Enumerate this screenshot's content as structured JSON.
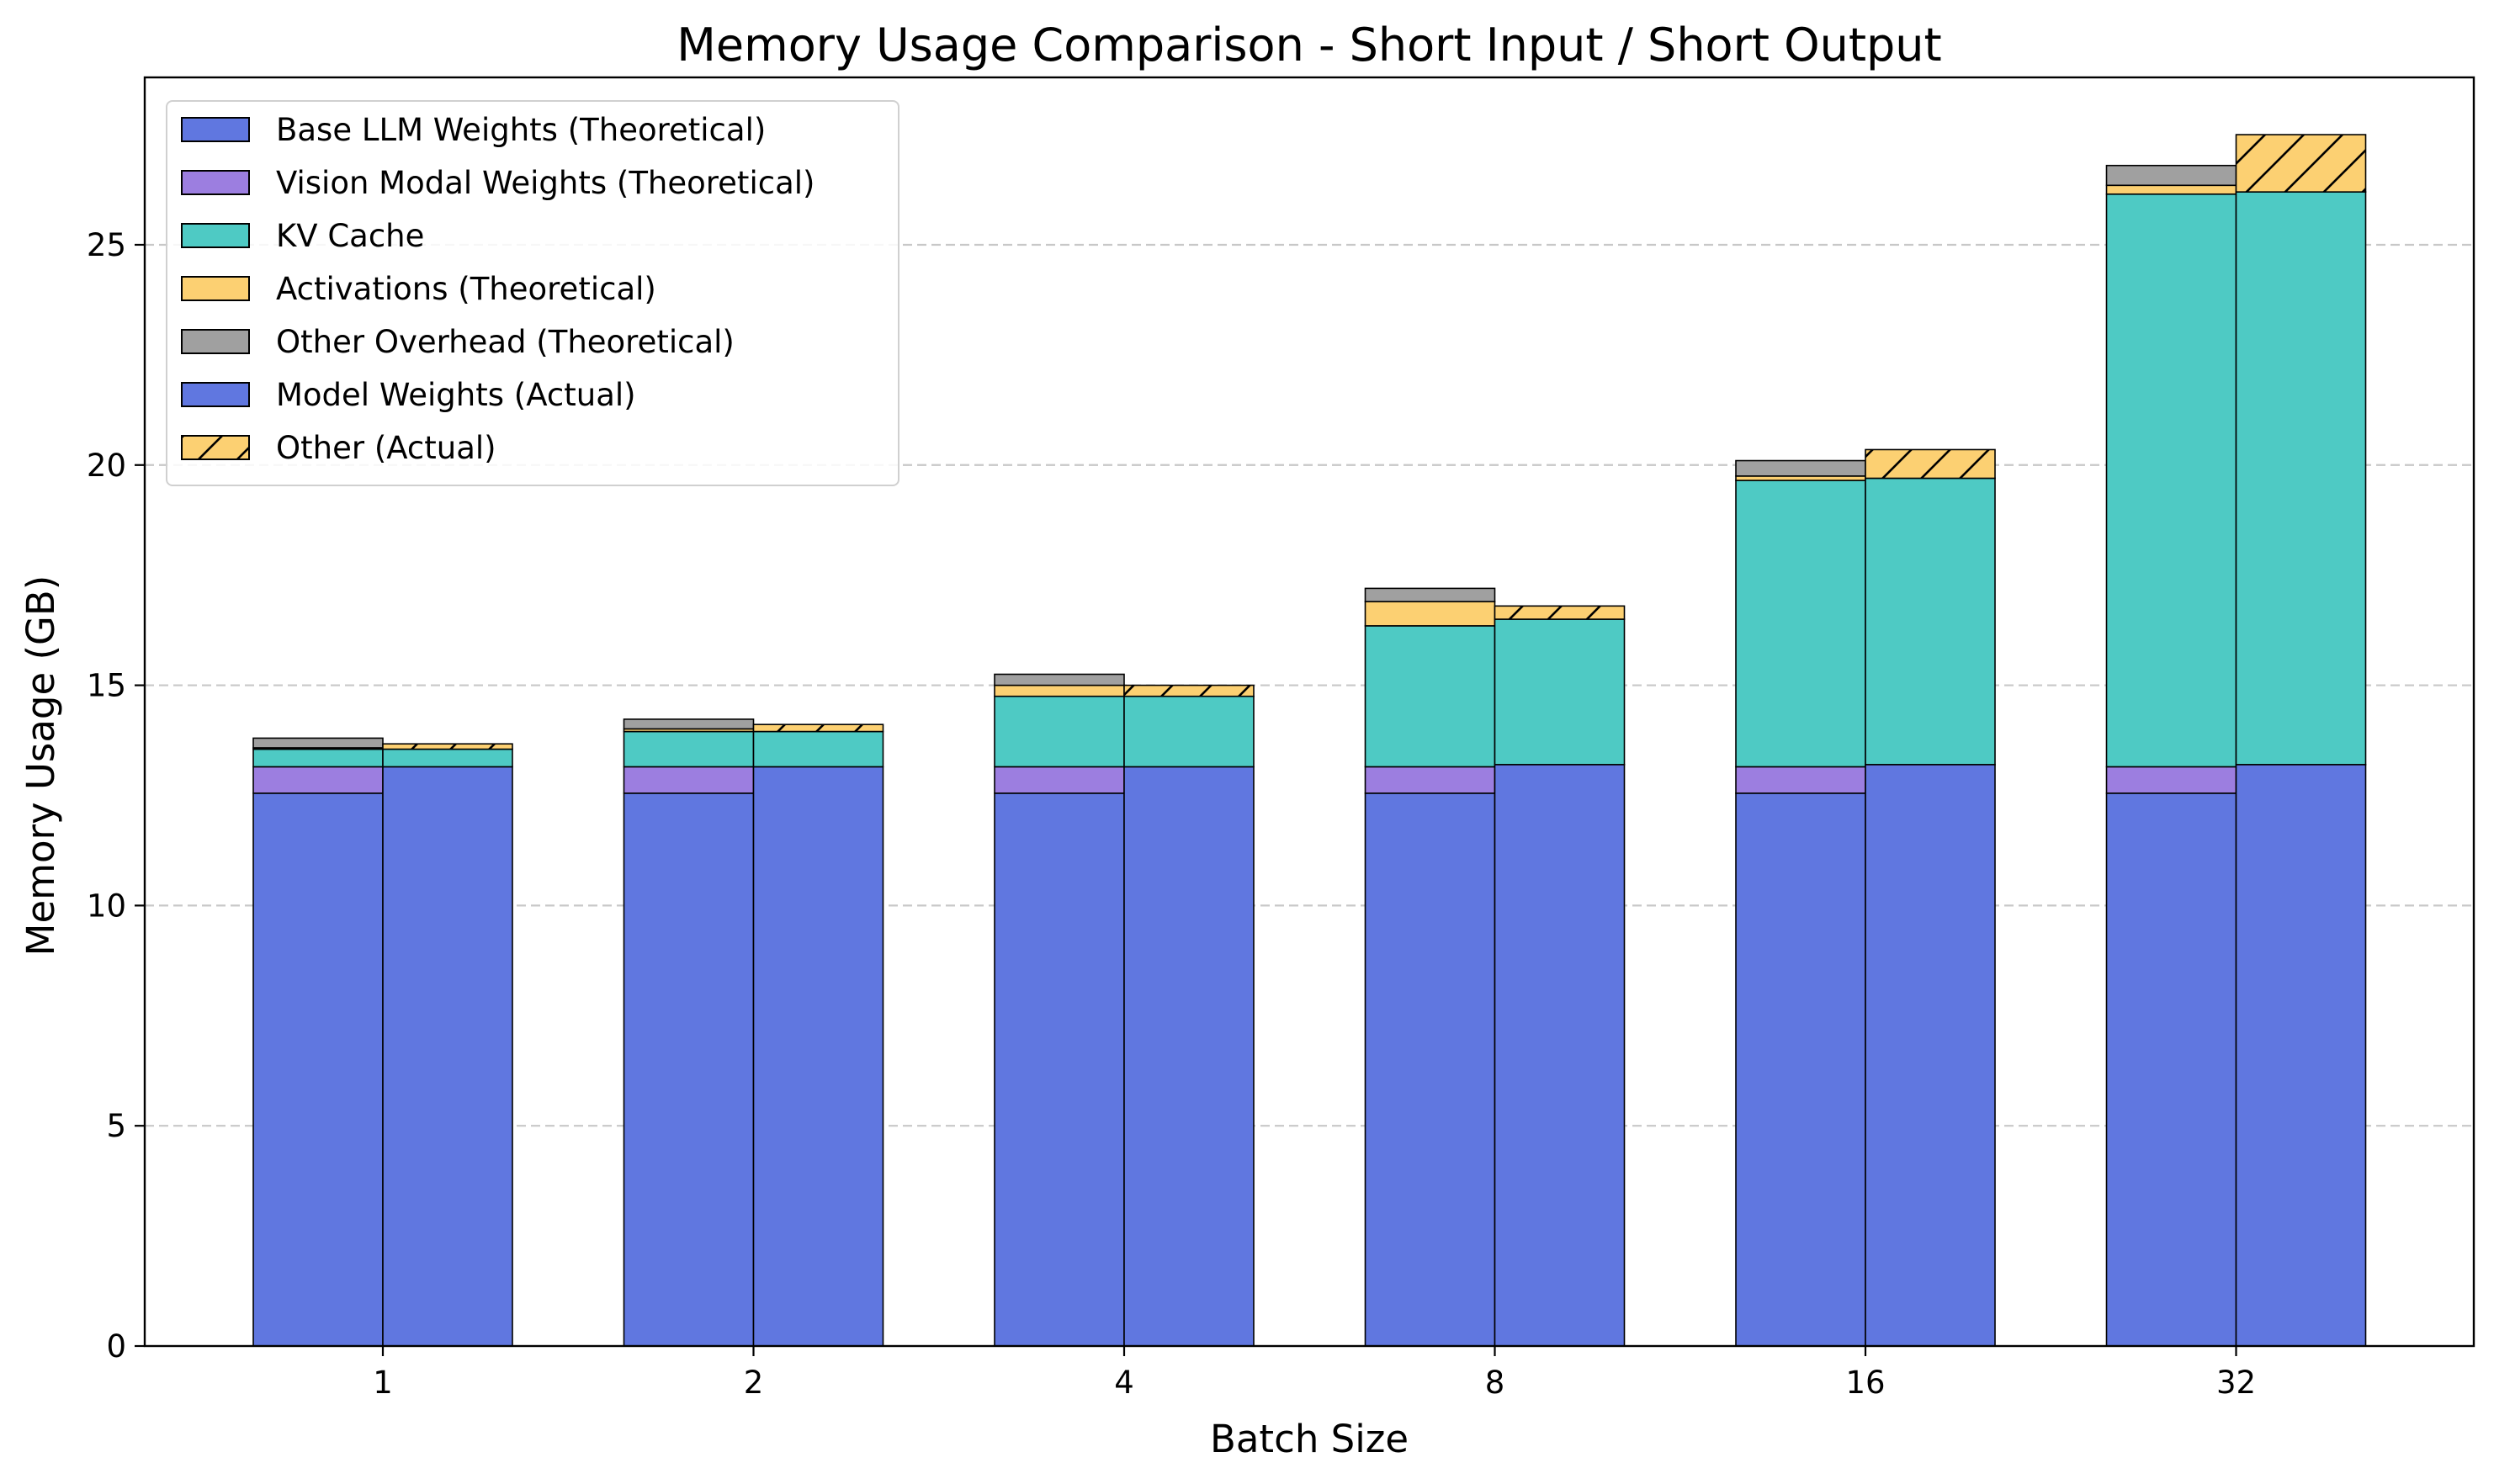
{
  "chart_data": {
    "type": "bar",
    "title": "Memory Usage Comparison - Short Input / Short Output",
    "xlabel": "Batch Size",
    "ylabel": "Memory Usage (GB)",
    "ylim": [
      0,
      28.8
    ],
    "yticks": [
      0,
      5,
      10,
      15,
      20,
      25
    ],
    "grid": "y-dashed",
    "legend_position": "top-left",
    "categories": [
      "1",
      "2",
      "4",
      "8",
      "16",
      "32"
    ],
    "theoretical": [
      {
        "name": "Base LLM Weights (Theoretical)",
        "color": "#6077e0",
        "hatch": false,
        "values": [
          12.55,
          12.55,
          12.55,
          12.55,
          12.55,
          12.55
        ]
      },
      {
        "name": "Vision Modal Weights (Theoretical)",
        "color": "#9c7ee0",
        "hatch": false,
        "values": [
          0.6,
          0.6,
          0.6,
          0.6,
          0.6,
          0.6
        ]
      },
      {
        "name": "KV Cache",
        "color": "#4ecac4",
        "hatch": false,
        "values": [
          0.4,
          0.8,
          1.6,
          3.2,
          6.5,
          13.0
        ]
      },
      {
        "name": "Activations (Theoretical)",
        "color": "#fcd072",
        "hatch": false,
        "values": [
          0.03,
          0.06,
          0.25,
          0.55,
          0.1,
          0.2
        ]
      },
      {
        "name": "Other Overhead (Theoretical)",
        "color": "#a0a0a0",
        "hatch": false,
        "values": [
          0.22,
          0.22,
          0.25,
          0.3,
          0.35,
          0.45
        ]
      }
    ],
    "actual": [
      {
        "name": "Model Weights (Actual)",
        "color": "#6077e0",
        "hatch": false,
        "values": [
          13.15,
          13.15,
          13.15,
          13.2,
          13.2,
          13.2
        ]
      },
      {
        "name": "KV Cache",
        "color": "#4ecac4",
        "hatch": false,
        "in_legend": false,
        "values": [
          0.4,
          0.8,
          1.6,
          3.3,
          6.5,
          13.0
        ]
      },
      {
        "name": "Other (Actual)",
        "color": "#fcd072",
        "hatch": true,
        "values": [
          0.12,
          0.16,
          0.25,
          0.3,
          0.65,
          1.3
        ]
      }
    ],
    "legend": [
      {
        "label": "Base LLM Weights (Theoretical)",
        "color": "#6077e0",
        "hatch": false
      },
      {
        "label": "Vision Modal Weights (Theoretical)",
        "color": "#9c7ee0",
        "hatch": false
      },
      {
        "label": "KV Cache",
        "color": "#4ecac4",
        "hatch": false
      },
      {
        "label": "Activations (Theoretical)",
        "color": "#fcd072",
        "hatch": false
      },
      {
        "label": "Other Overhead (Theoretical)",
        "color": "#a0a0a0",
        "hatch": false
      },
      {
        "label": "Model Weights (Actual)",
        "color": "#6077e0",
        "hatch": false
      },
      {
        "label": "Other (Actual)",
        "color": "#fcd072",
        "hatch": true
      }
    ]
  }
}
